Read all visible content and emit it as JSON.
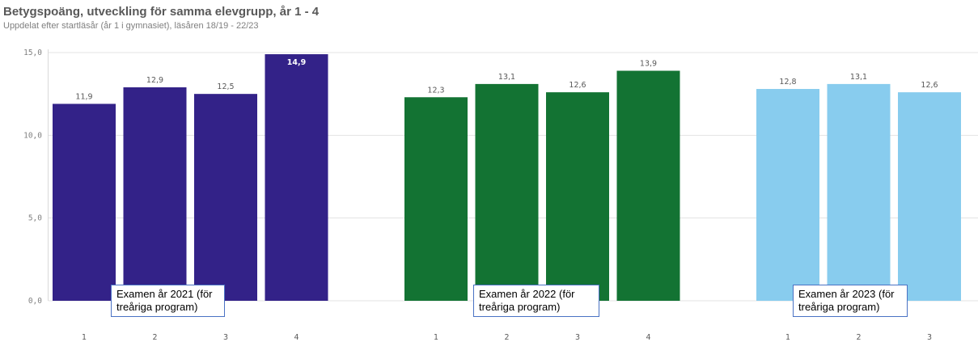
{
  "chart_data": {
    "type": "bar",
    "title": "Betygspoäng, utveckling för samma elevgrupp, år 1 - 4",
    "subtitle": "Uppdelat efter startläsår (år 1 i gymnasiet), läsåren 18/19 - 22/23",
    "ylim": [
      0,
      15
    ],
    "yticks": [
      "0,0",
      "5,0",
      "10,0",
      "15,0"
    ],
    "grid": true,
    "groups": [
      {
        "color": "#332288",
        "categories": [
          "1",
          "2",
          "3",
          "4"
        ],
        "values": [
          11.9,
          12.9,
          12.5,
          14.9
        ],
        "labels": [
          "11,9",
          "12,9",
          "12,5",
          "14,9"
        ],
        "annotation": [
          "Examen år 2021 (för",
          "treåriga program)"
        ]
      },
      {
        "color": "#137333",
        "categories": [
          "1",
          "2",
          "3",
          "4"
        ],
        "values": [
          12.3,
          13.1,
          12.6,
          13.9
        ],
        "labels": [
          "12,3",
          "13,1",
          "12,6",
          "13,9"
        ],
        "annotation": [
          "Examen år 2022 (för",
          "treåriga program)"
        ]
      },
      {
        "color": "#88ccee",
        "categories": [
          "1",
          "2",
          "3"
        ],
        "values": [
          12.8,
          13.1,
          12.6
        ],
        "labels": [
          "12,8",
          "13,1",
          "12,6"
        ],
        "annotation": [
          "Examen år 2023 (för",
          "treåriga program)"
        ]
      }
    ]
  }
}
